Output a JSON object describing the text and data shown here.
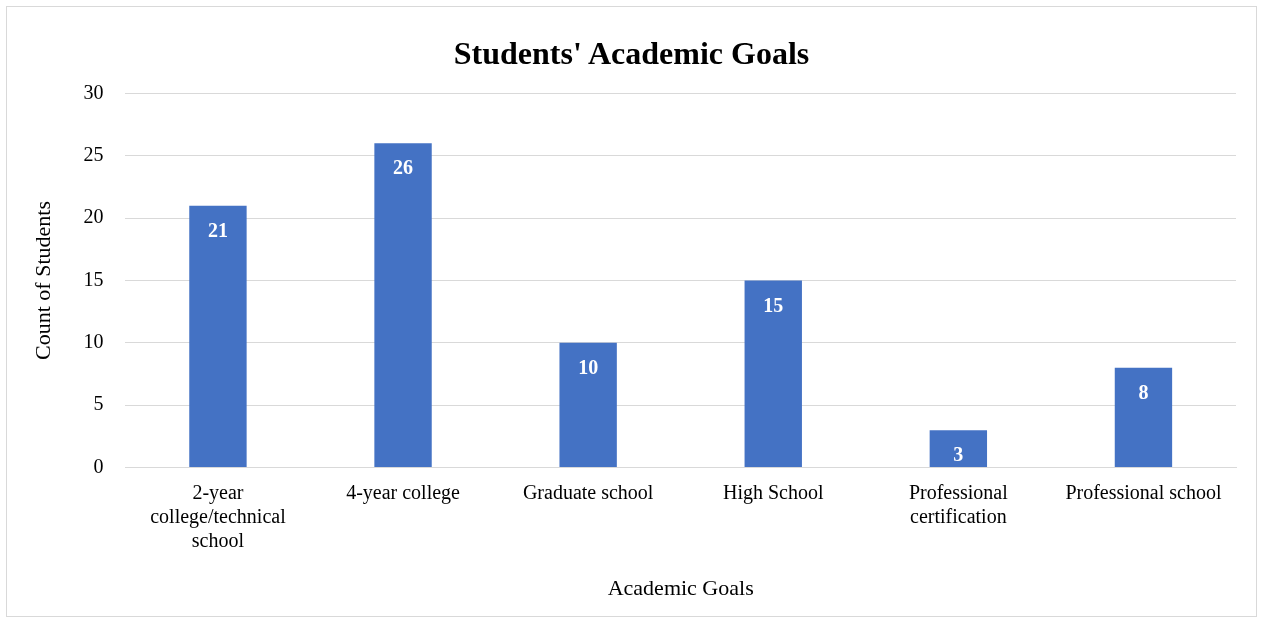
{
  "chart_data": {
    "type": "bar",
    "title": "Students' Academic Goals",
    "xlabel": "Academic Goals",
    "ylabel": "Count of Students",
    "categories": [
      "2-year college/technical school",
      "4-year college",
      "Graduate school",
      "High School",
      "Professional certification",
      "Professional school"
    ],
    "values": [
      21,
      26,
      10,
      15,
      3,
      8
    ],
    "color": "#4472c4",
    "ylim": [
      0,
      30
    ],
    "yticks": [
      0,
      5,
      10,
      15,
      20,
      25,
      30
    ],
    "grid": "y",
    "data_labels": true,
    "legend": false
  }
}
